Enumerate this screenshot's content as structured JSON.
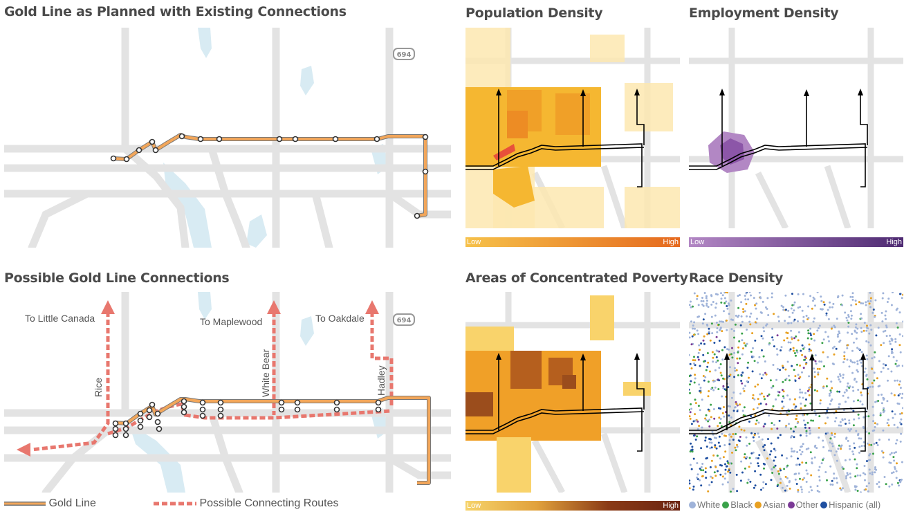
{
  "panels": {
    "planned": {
      "title": "Gold Line as Planned with Existing Connections",
      "shield": "694"
    },
    "possible": {
      "title": "Possible Gold Line Connections",
      "shield": "694",
      "labels": {
        "little_canada": "To Little Canada",
        "maplewood": "To Maplewood",
        "oakdale": "To Oakdale",
        "rice": "Rice",
        "white_bear": "White Bear",
        "hadley": "Hadley"
      }
    },
    "population": {
      "title": "Population Density",
      "scale_low": "Low",
      "scale_high": "High"
    },
    "employment": {
      "title": "Employment Density",
      "scale_low": "Low",
      "scale_high": "High"
    },
    "poverty": {
      "title": "Areas of Concentrated Poverty",
      "scale_low": "Low",
      "scale_high": "High"
    },
    "race": {
      "title": "Race Density"
    }
  },
  "legend": {
    "gold_line": "Gold Line",
    "connecting": "Possible Connecting Routes"
  },
  "race_legend": [
    {
      "label": "White",
      "color": "#9fb3d9"
    },
    {
      "label": "Black",
      "color": "#3aa24a"
    },
    {
      "label": "Asian",
      "color": "#e8a020"
    },
    {
      "label": "Other",
      "color": "#7b3a96"
    },
    {
      "label": "Hispanic (all)",
      "color": "#1f4fa0"
    }
  ],
  "colors": {
    "gold_line": "#f2a65a",
    "connecting": "#e8776e",
    "road": "#e3e3e3",
    "water": "#d8ebf3"
  }
}
